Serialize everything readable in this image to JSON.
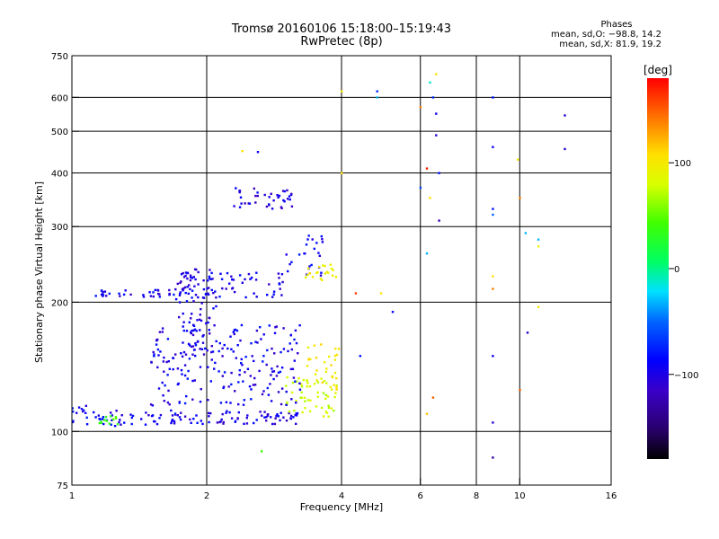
{
  "header": {
    "title_line1": "Tromsø 20160106 15:18:00–15:19:43",
    "title_line2": "RwPretec (8p)",
    "phases_title": "Phases",
    "phase_o": "mean, sd,O: −98.8, 14.2",
    "phase_x": "mean, sd,X: 81.9, 19.2"
  },
  "colorbar": {
    "unit_label": "[deg]",
    "ticks": [
      "100",
      "0",
      "−100"
    ],
    "tick_values": [
      100,
      0,
      -100
    ],
    "range": [
      -180,
      180
    ]
  },
  "chart_data": {
    "type": "scatter",
    "title": "Tromsø 20160106 15:18:00–15:19:43",
    "subtitle": "RwPretec (8p)",
    "xlabel": "Frequency [MHz]",
    "ylabel": "Stationary phase Virtual Height [km]",
    "x_scale": "log",
    "y_scale": "log",
    "xlim": [
      1,
      16
    ],
    "ylim": [
      75,
      750
    ],
    "x_ticks": [
      1,
      2,
      4,
      6,
      8,
      10,
      16
    ],
    "x_tick_labels": [
      "1",
      "2",
      "4",
      "6",
      "8",
      "10",
      "16"
    ],
    "y_ticks": [
      75,
      100,
      200,
      300,
      400,
      500,
      600,
      750
    ],
    "y_tick_labels": [
      "75",
      "100",
      "200",
      "300",
      "400",
      "500",
      "600",
      "750"
    ],
    "grid": true,
    "color_by": "phase [deg]",
    "clusters": [
      {
        "x_range": [
          1.0,
          1.9
        ],
        "y_range": [
          103,
          112
        ],
        "phase": -100,
        "count": 60
      },
      {
        "x_range": [
          1.9,
          3.2
        ],
        "y_range": [
          104,
          112
        ],
        "phase": -105,
        "count": 60
      },
      {
        "x_range": [
          1.15,
          1.3
        ],
        "y_range": [
          104,
          109
        ],
        "phase": 40,
        "count": 12
      },
      {
        "x_range": [
          1.0,
          1.08
        ],
        "y_range": [
          110,
          116
        ],
        "phase": -100,
        "count": 8
      },
      {
        "x_range": [
          3.0,
          3.9
        ],
        "y_range": [
          108,
          135
        ],
        "phase": 80,
        "count": 55
      },
      {
        "x_range": [
          3.3,
          3.95
        ],
        "y_range": [
          125,
          160
        ],
        "phase": 100,
        "count": 30
      },
      {
        "x_range": [
          1.5,
          3.3
        ],
        "y_range": [
          115,
          180
        ],
        "phase": -100,
        "count": 200
      },
      {
        "x_range": [
          1.7,
          2.1
        ],
        "y_range": [
          150,
          240
        ],
        "phase": -105,
        "count": 80
      },
      {
        "x_range": [
          1.1,
          1.75
        ],
        "y_range": [
          206,
          214
        ],
        "phase": -100,
        "count": 35
      },
      {
        "x_range": [
          1.75,
          3.0
        ],
        "y_range": [
          205,
          235
        ],
        "phase": -100,
        "count": 60
      },
      {
        "x_range": [
          3.0,
          3.7
        ],
        "y_range": [
          230,
          290
        ],
        "phase": -100,
        "count": 25
      },
      {
        "x_range": [
          3.3,
          3.9
        ],
        "y_range": [
          225,
          245
        ],
        "phase": 100,
        "count": 20
      },
      {
        "x_range": [
          2.3,
          3.2
        ],
        "y_range": [
          330,
          370
        ],
        "phase": -105,
        "count": 40
      }
    ],
    "points": [
      {
        "x": 2.65,
        "y": 90,
        "phase": 40
      },
      {
        "x": 2.4,
        "y": 450,
        "phase": 110
      },
      {
        "x": 2.6,
        "y": 448,
        "phase": -100
      },
      {
        "x": 4.0,
        "y": 400,
        "phase": 110
      },
      {
        "x": 4.0,
        "y": 620,
        "phase": 100
      },
      {
        "x": 4.3,
        "y": 210,
        "phase": 160
      },
      {
        "x": 4.4,
        "y": 150,
        "phase": -90
      },
      {
        "x": 4.8,
        "y": 620,
        "phase": -80
      },
      {
        "x": 4.8,
        "y": 600,
        "phase": -40
      },
      {
        "x": 4.9,
        "y": 210,
        "phase": 110
      },
      {
        "x": 5.2,
        "y": 190,
        "phase": -100
      },
      {
        "x": 6.0,
        "y": 570,
        "phase": 140
      },
      {
        "x": 6.0,
        "y": 370,
        "phase": -70
      },
      {
        "x": 6.2,
        "y": 410,
        "phase": 170
      },
      {
        "x": 6.2,
        "y": 260,
        "phase": -40
      },
      {
        "x": 6.3,
        "y": 650,
        "phase": -20
      },
      {
        "x": 6.4,
        "y": 600,
        "phase": -80
      },
      {
        "x": 6.5,
        "y": 550,
        "phase": -100
      },
      {
        "x": 6.5,
        "y": 490,
        "phase": -110
      },
      {
        "x": 6.6,
        "y": 400,
        "phase": -90
      },
      {
        "x": 6.6,
        "y": 310,
        "phase": -120
      },
      {
        "x": 6.4,
        "y": 120,
        "phase": 150
      },
      {
        "x": 6.2,
        "y": 110,
        "phase": 120
      },
      {
        "x": 6.5,
        "y": 680,
        "phase": 110
      },
      {
        "x": 6.3,
        "y": 350,
        "phase": 110
      },
      {
        "x": 8.7,
        "y": 600,
        "phase": -90
      },
      {
        "x": 8.7,
        "y": 460,
        "phase": -100
      },
      {
        "x": 8.7,
        "y": 330,
        "phase": -90
      },
      {
        "x": 8.7,
        "y": 320,
        "phase": -60
      },
      {
        "x": 8.7,
        "y": 230,
        "phase": 110
      },
      {
        "x": 8.7,
        "y": 215,
        "phase": 140
      },
      {
        "x": 8.7,
        "y": 150,
        "phase": -100
      },
      {
        "x": 8.7,
        "y": 105,
        "phase": -110
      },
      {
        "x": 8.7,
        "y": 87,
        "phase": -130
      },
      {
        "x": 9.9,
        "y": 430,
        "phase": 100
      },
      {
        "x": 10.0,
        "y": 350,
        "phase": 140
      },
      {
        "x": 10.0,
        "y": 125,
        "phase": 150
      },
      {
        "x": 10.3,
        "y": 290,
        "phase": -40
      },
      {
        "x": 10.4,
        "y": 170,
        "phase": -110
      },
      {
        "x": 11.0,
        "y": 280,
        "phase": -40
      },
      {
        "x": 11.0,
        "y": 270,
        "phase": 90
      },
      {
        "x": 11.0,
        "y": 195,
        "phase": 100
      },
      {
        "x": 12.6,
        "y": 545,
        "phase": -110
      },
      {
        "x": 12.6,
        "y": 455,
        "phase": -110
      }
    ]
  }
}
